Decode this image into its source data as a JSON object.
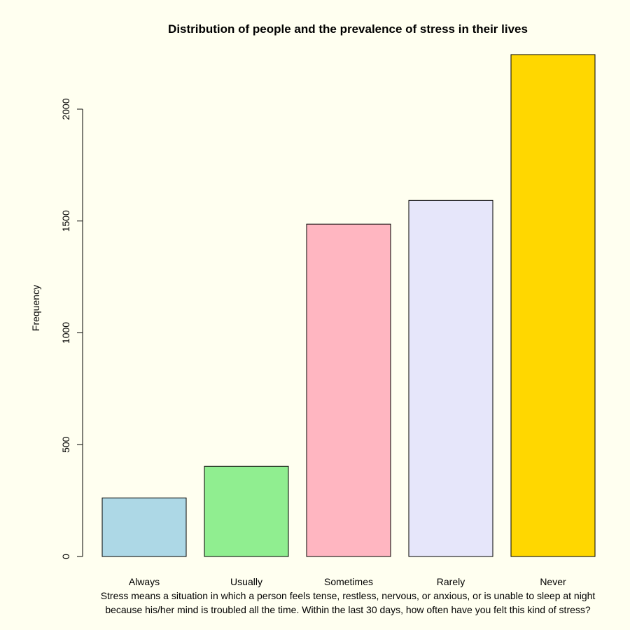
{
  "chart_data": {
    "type": "bar",
    "title": "Distribution of people and the prevalence of stress in their lives",
    "ylabel": "Frequency",
    "xlabel_lines": [
      "Stress means a situation in which a person feels tense, restless, nervous, or anxious, or is unable to sleep at night",
      "because his/her mind is troubled all the time. Within the last 30 days, how often have you felt this kind of stress?"
    ],
    "categories": [
      "Always",
      "Usually",
      "Sometimes",
      "Rarely",
      "Never"
    ],
    "values": [
      262,
      403,
      1486,
      1592,
      2244
    ],
    "colors": [
      "#add8e6",
      "#90ee90",
      "#ffb6c1",
      "#e6e6fa",
      "#ffd700"
    ],
    "yticks": [
      0,
      500,
      1000,
      1500,
      2000
    ],
    "ylim": [
      0,
      2244
    ],
    "grid": false,
    "legend": "none"
  }
}
